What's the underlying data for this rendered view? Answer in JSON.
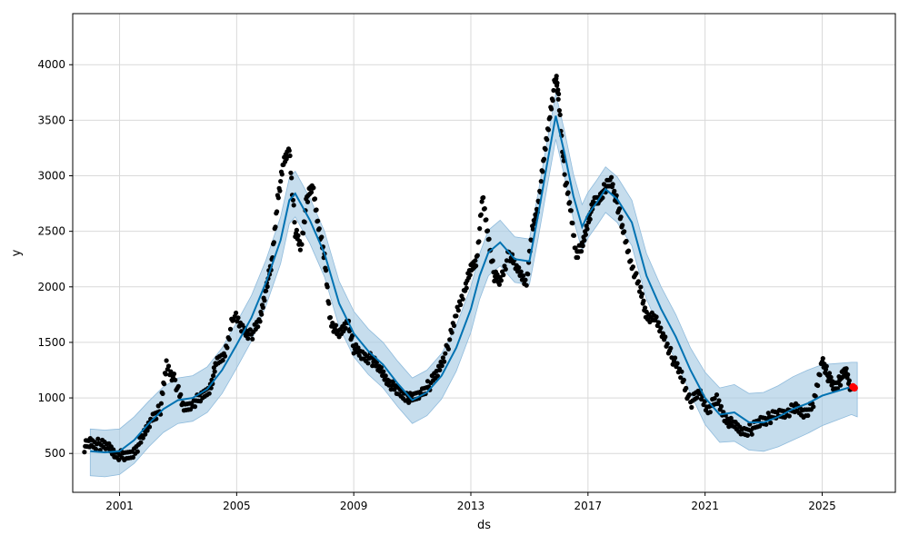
{
  "chart_data": {
    "type": "line",
    "title": "",
    "xlabel": "ds",
    "ylabel": "y",
    "xlim": [
      1999.4,
      2027.5
    ],
    "ylim": [
      150,
      4460
    ],
    "grid": true,
    "x_ticks": [
      2001,
      2005,
      2009,
      2013,
      2017,
      2021,
      2025
    ],
    "y_ticks": [
      500,
      1000,
      1500,
      2000,
      2500,
      3000,
      3500,
      4000
    ],
    "colors": {
      "observed": "#000000",
      "forecast": "#0072B2",
      "interval": "#a8cbe4",
      "highlight": "#ff0000"
    },
    "forecast_series": {
      "name": "yhat",
      "x": [
        2000.0,
        2000.5,
        2001.0,
        2001.5,
        2002.0,
        2002.5,
        2003.0,
        2003.5,
        2004.0,
        2004.5,
        2005.0,
        2005.5,
        2006.0,
        2006.5,
        2006.8,
        2007.0,
        2007.5,
        2008.0,
        2008.5,
        2009.0,
        2009.5,
        2010.0,
        2010.5,
        2011.0,
        2011.5,
        2012.0,
        2012.5,
        2013.0,
        2013.3,
        2013.6,
        2014.0,
        2014.5,
        2015.0,
        2015.3,
        2015.6,
        2015.9,
        2016.2,
        2016.5,
        2016.8,
        2017.0,
        2017.3,
        2017.6,
        2018.0,
        2018.5,
        2019.0,
        2019.5,
        2020.0,
        2020.5,
        2021.0,
        2021.5,
        2022.0,
        2022.5,
        2023.0,
        2023.5,
        2024.0,
        2024.5,
        2025.0,
        2025.5,
        2026.0,
        2026.2
      ],
      "y": [
        520,
        510,
        520,
        620,
        770,
        900,
        980,
        1000,
        1080,
        1250,
        1480,
        1720,
        2040,
        2420,
        2780,
        2840,
        2600,
        2300,
        1850,
        1580,
        1420,
        1300,
        1130,
        980,
        1050,
        1200,
        1450,
        1800,
        2100,
        2310,
        2400,
        2250,
        2230,
        2650,
        3100,
        3540,
        3200,
        2820,
        2540,
        2650,
        2760,
        2880,
        2790,
        2580,
        2100,
        1800,
        1550,
        1250,
        1000,
        850,
        870,
        780,
        780,
        830,
        900,
        950,
        1020,
        1060,
        1100,
        1070
      ]
    },
    "interval_upper": [
      720,
      710,
      720,
      830,
      970,
      1100,
      1180,
      1200,
      1280,
      1450,
      1680,
      1920,
      2240,
      2630,
      2980,
      3040,
      2800,
      2500,
      2050,
      1780,
      1620,
      1500,
      1330,
      1180,
      1250,
      1400,
      1650,
      2000,
      2300,
      2510,
      2600,
      2450,
      2430,
      2850,
      3300,
      3740,
      3400,
      3020,
      2740,
      2850,
      2960,
      3080,
      2990,
      2780,
      2300,
      2000,
      1750,
      1450,
      1230,
      1090,
      1120,
      1040,
      1050,
      1110,
      1190,
      1250,
      1300,
      1310,
      1320,
      1320
    ],
    "interval_lower": [
      300,
      290,
      310,
      410,
      560,
      690,
      770,
      790,
      870,
      1040,
      1270,
      1510,
      1830,
      2210,
      2570,
      2630,
      2390,
      2090,
      1640,
      1370,
      1210,
      1090,
      920,
      770,
      840,
      990,
      1240,
      1590,
      1890,
      2100,
      2190,
      2040,
      2020,
      2440,
      2890,
      3330,
      2990,
      2610,
      2330,
      2440,
      2550,
      2670,
      2580,
      2370,
      1890,
      1590,
      1340,
      1040,
      760,
      600,
      610,
      530,
      520,
      560,
      620,
      680,
      750,
      800,
      850,
      830
    ],
    "observed_series": {
      "name": "y",
      "x": [
        1999.8,
        2000.0,
        2000.3,
        2000.6,
        2000.9,
        2001.2,
        2001.5,
        2001.8,
        2002.1,
        2002.4,
        2002.6,
        2002.9,
        2003.2,
        2003.5,
        2003.8,
        2004.1,
        2004.3,
        2004.6,
        2004.9,
        2005.2,
        2005.5,
        2005.8,
        2006.0,
        2006.2,
        2006.4,
        2006.6,
        2006.8,
        2007.0,
        2007.2,
        2007.4,
        2007.6,
        2007.8,
        2008.0,
        2008.2,
        2008.5,
        2008.8,
        2009.0,
        2009.3,
        2009.6,
        2009.9,
        2010.2,
        2010.5,
        2010.8,
        2011.0,
        2011.3,
        2011.6,
        2011.9,
        2012.2,
        2012.5,
        2012.8,
        2013.0,
        2013.2,
        2013.4,
        2013.6,
        2013.8,
        2014.0,
        2014.3,
        2014.6,
        2014.9,
        2015.1,
        2015.3,
        2015.5,
        2015.7,
        2015.9,
        2016.0,
        2016.2,
        2016.4,
        2016.6,
        2016.8,
        2017.0,
        2017.2,
        2017.4,
        2017.6,
        2017.8,
        2018.0,
        2018.2,
        2018.5,
        2018.8,
        2019.0,
        2019.3,
        2019.6,
        2019.9,
        2020.2,
        2020.5,
        2020.8,
        2021.1,
        2021.4,
        2021.7,
        2022.0,
        2022.3,
        2022.6,
        2022.9,
        2023.2,
        2023.5,
        2023.8,
        2024.1,
        2024.4,
        2024.7,
        2025.0,
        2025.2,
        2025.4,
        2025.6,
        2025.8,
        2026.0
      ],
      "y": [
        560,
        600,
        580,
        560,
        500,
        460,
        520,
        640,
        820,
        900,
        1300,
        1150,
        900,
        960,
        1000,
        1100,
        1300,
        1400,
        1750,
        1620,
        1560,
        1700,
        2000,
        2200,
        2800,
        3100,
        3250,
        2500,
        2350,
        2800,
        2900,
        2550,
        2250,
        1700,
        1550,
        1700,
        1450,
        1380,
        1350,
        1250,
        1150,
        1050,
        1020,
        980,
        1050,
        1120,
        1250,
        1450,
        1750,
        2000,
        2150,
        2250,
        2800,
        2450,
        2100,
        2050,
        2300,
        2150,
        2050,
        2500,
        2750,
        3150,
        3550,
        3900,
        3700,
        3000,
        2700,
        2300,
        2350,
        2600,
        2750,
        2800,
        2900,
        2950,
        2750,
        2500,
        2200,
        1950,
        1750,
        1700,
        1550,
        1350,
        1200,
        950,
        1050,
        900,
        980,
        820,
        740,
        700,
        720,
        790,
        820,
        850,
        880,
        900,
        870,
        920,
        1350,
        1200,
        1100,
        1150,
        1250,
        1080
      ]
    },
    "highlight_points": {
      "x": [
        2026.05,
        2026.1
      ],
      "y": [
        1100,
        1090
      ]
    }
  }
}
